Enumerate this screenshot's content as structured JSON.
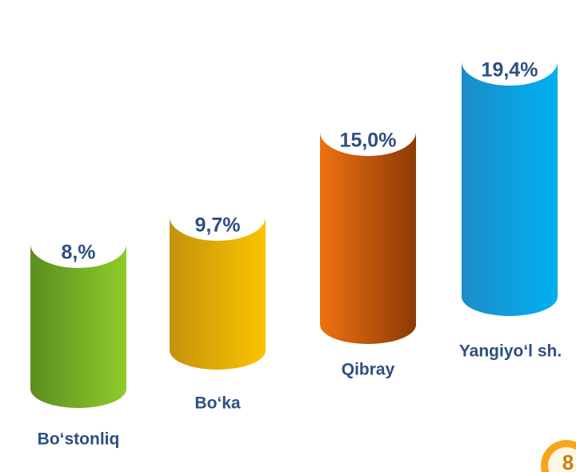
{
  "chart_data": {
    "type": "cylinder",
    "categories": [
      "Bo‘stonliq",
      "Bo‘ka",
      "Qibray",
      "Yangiyo‘l sh."
    ],
    "values": [
      8,
      9.7,
      15.0,
      19.4
    ],
    "value_labels": [
      "8,%",
      "9,7%",
      "15,0%",
      "19,4%"
    ],
    "colors": [
      [
        "#5b8e1f",
        "#8fcb2a"
      ],
      [
        "#c4920c",
        "#fbc400"
      ],
      [
        "#ef7210",
        "#8c3a06"
      ],
      [
        "#1d8cc8",
        "#00b0f2"
      ]
    ],
    "badge": "8"
  }
}
